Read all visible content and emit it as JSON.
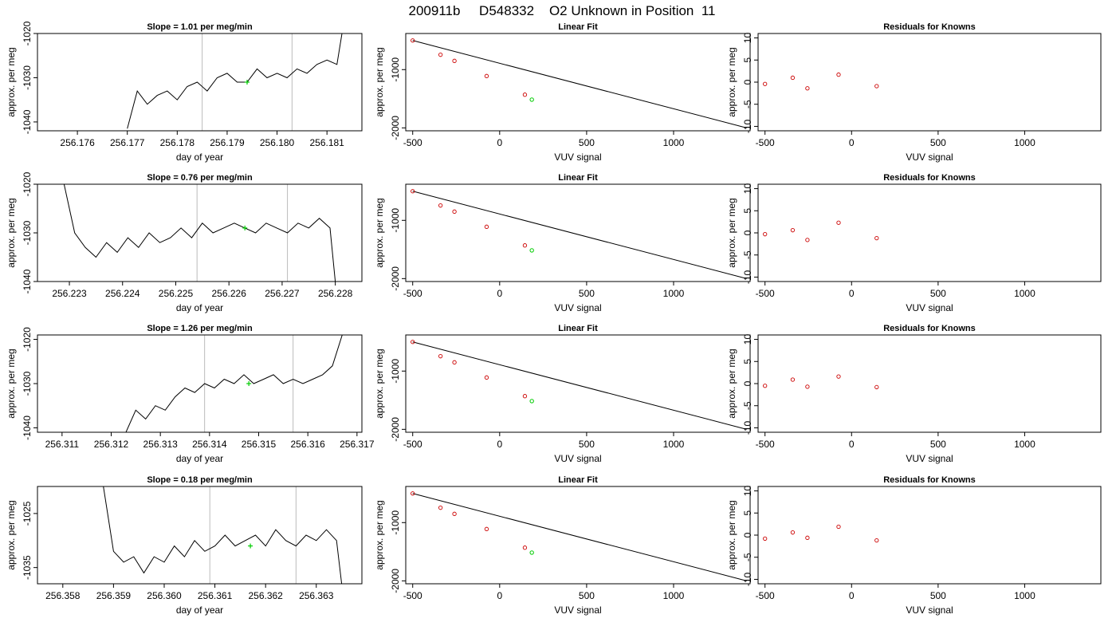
{
  "figure_title": "200911b     D548332    O2 Unknown in Position  11",
  "colors": {
    "trace": "#000000",
    "marker": "#00cc00",
    "known_point": "#cc0000",
    "vline": "#bbbbbb",
    "frame": "#000000"
  },
  "chart_data": [
    {
      "type": "line",
      "title": "Slope =  1.01  per meg/min",
      "xlabel": "day of year",
      "ylabel": "approx. per meg",
      "xlim": [
        256.1752,
        256.1817
      ],
      "ylim": [
        -1042,
        -1020
      ],
      "xticks": [
        256.176,
        256.177,
        256.178,
        256.179,
        256.18,
        256.181
      ],
      "xtick_labels": [
        "256.176",
        "256.177",
        "256.178",
        "256.179",
        "256.180",
        "256.181"
      ],
      "yticks": [
        -1040,
        -1030,
        -1020
      ],
      "ytick_labels": [
        "-1040",
        "-1030",
        "-1020"
      ],
      "vlines": [
        256.1785,
        256.1803
      ],
      "marker": {
        "x": 256.1794,
        "y": -1031
      },
      "series": [
        {
          "x": [
            256.177,
            256.1772,
            256.1774,
            256.1776,
            256.1778,
            256.178,
            256.1782,
            256.1784,
            256.1786,
            256.1788,
            256.179,
            256.1792,
            256.1794,
            256.1796,
            256.1798,
            256.18,
            256.1802,
            256.1804,
            256.1806,
            256.1808,
            256.181,
            256.1812,
            256.1813
          ],
          "y": [
            -1041.5,
            -1033,
            -1036,
            -1034,
            -1033,
            -1035,
            -1032,
            -1031,
            -1033,
            -1030,
            -1029,
            -1031,
            -1031,
            -1028,
            -1030,
            -1029,
            -1030,
            -1028,
            -1029,
            -1027,
            -1026,
            -1027,
            -1020
          ]
        }
      ]
    },
    {
      "type": "line",
      "title": "Linear Fit",
      "xlabel": "VUV signal",
      "ylabel": "approx. per meg",
      "xlim": [
        -540,
        1440
      ],
      "ylim": [
        -2050,
        -380
      ],
      "xticks": [
        -500,
        0,
        500,
        1000
      ],
      "xtick_labels": [
        "-500",
        "0",
        "500",
        "1000"
      ],
      "yticks": [
        -2000,
        -1000
      ],
      "ytick_labels": [
        "-2000",
        "-1000"
      ],
      "fit_line": {
        "x": [
          -500,
          1420
        ],
        "y": [
          -500,
          -2000
        ]
      },
      "known_points": {
        "x": [
          -500,
          -340,
          -260,
          -75,
          145
        ],
        "y": [
          -500,
          -745,
          -850,
          -1110,
          -1430
        ]
      },
      "unknown_point": {
        "x": 185,
        "y": -1515
      }
    },
    {
      "type": "scatter",
      "title": "Residuals for Knowns",
      "xlabel": "VUV signal",
      "ylabel": "approx. per meg",
      "xlim": [
        -540,
        1440
      ],
      "ylim": [
        -11,
        11
      ],
      "xticks": [
        -500,
        0,
        500,
        1000
      ],
      "xtick_labels": [
        "-500",
        "0",
        "500",
        "1000"
      ],
      "yticks": [
        -10,
        -5,
        0,
        5,
        10
      ],
      "ytick_labels": [
        "-10",
        "-5",
        "0",
        "5",
        "10"
      ],
      "points": {
        "x": [
          -500,
          -340,
          -255,
          -75,
          145
        ],
        "y": [
          -0.4,
          1.0,
          -1.4,
          1.7,
          -0.9
        ]
      }
    },
    {
      "type": "line",
      "title": "Slope =  0.76  per meg/min",
      "xlabel": "day of year",
      "ylabel": "approx. per meg",
      "xlim": [
        256.2224,
        256.2285
      ],
      "ylim": [
        -1040,
        -1020
      ],
      "xticks": [
        256.223,
        256.224,
        256.225,
        256.226,
        256.227,
        256.228
      ],
      "xtick_labels": [
        "256.223",
        "256.224",
        "256.225",
        "256.226",
        "256.227",
        "256.228"
      ],
      "yticks": [
        -1040,
        -1030,
        -1020
      ],
      "ytick_labels": [
        "-1040",
        "-1030",
        "-1020"
      ],
      "vlines": [
        256.2254,
        256.2271
      ],
      "marker": {
        "x": 256.2263,
        "y": -1029
      },
      "series": [
        {
          "x": [
            256.2229,
            256.2231,
            256.2233,
            256.2235,
            256.2237,
            256.2239,
            256.2241,
            256.2243,
            256.2245,
            256.2247,
            256.2249,
            256.2251,
            256.2253,
            256.2255,
            256.2257,
            256.2259,
            256.2261,
            256.2263,
            256.2265,
            256.2267,
            256.2269,
            256.2271,
            256.2273,
            256.2275,
            256.2277,
            256.2279,
            256.228
          ],
          "y": [
            -1020,
            -1030,
            -1033,
            -1035,
            -1032,
            -1034,
            -1031,
            -1033,
            -1030,
            -1032,
            -1031,
            -1029,
            -1031,
            -1028,
            -1030,
            -1029,
            -1028,
            -1029,
            -1030,
            -1028,
            -1029,
            -1030,
            -1028,
            -1029,
            -1027,
            -1029,
            -1040
          ]
        }
      ]
    },
    {
      "type": "line",
      "title": "Linear Fit",
      "xlabel": "VUV signal",
      "ylabel": "approx. per meg",
      "xlim": [
        -540,
        1440
      ],
      "ylim": [
        -2050,
        -380
      ],
      "xticks": [
        -500,
        0,
        500,
        1000
      ],
      "xtick_labels": [
        "-500",
        "0",
        "500",
        "1000"
      ],
      "yticks": [
        -2000,
        -1000
      ],
      "ytick_labels": [
        "-2000",
        "-1000"
      ],
      "fit_line": {
        "x": [
          -500,
          1420
        ],
        "y": [
          -500,
          -2000
        ]
      },
      "known_points": {
        "x": [
          -500,
          -340,
          -260,
          -75,
          145
        ],
        "y": [
          -500,
          -745,
          -850,
          -1110,
          -1430
        ]
      },
      "unknown_point": {
        "x": 185,
        "y": -1515
      }
    },
    {
      "type": "scatter",
      "title": "Residuals for Knowns",
      "xlabel": "VUV signal",
      "ylabel": "approx. per meg",
      "xlim": [
        -540,
        1440
      ],
      "ylim": [
        -11,
        11
      ],
      "xticks": [
        -500,
        0,
        500,
        1000
      ],
      "xtick_labels": [
        "-500",
        "0",
        "500",
        "1000"
      ],
      "yticks": [
        -10,
        -5,
        0,
        5,
        10
      ],
      "ytick_labels": [
        "-10",
        "-5",
        "0",
        "5",
        "10"
      ],
      "points": {
        "x": [
          -500,
          -340,
          -255,
          -75,
          145
        ],
        "y": [
          -0.3,
          0.6,
          -1.6,
          2.3,
          -1.2
        ]
      }
    },
    {
      "type": "line",
      "title": "Slope =  1.26  per meg/min",
      "xlabel": "day of year",
      "ylabel": "approx. per meg",
      "xlim": [
        256.3105,
        256.3171
      ],
      "ylim": [
        -1041,
        -1019
      ],
      "xticks": [
        256.311,
        256.312,
        256.313,
        256.314,
        256.315,
        256.316,
        256.317
      ],
      "xtick_labels": [
        "256.311",
        "256.312",
        "256.313",
        "256.314",
        "256.315",
        "256.316",
        "256.317"
      ],
      "yticks": [
        -1040,
        -1030,
        -1020
      ],
      "ytick_labels": [
        "-1040",
        "-1030",
        "-1020"
      ],
      "vlines": [
        256.3139,
        256.3157
      ],
      "marker": {
        "x": 256.3148,
        "y": -1030
      },
      "series": [
        {
          "x": [
            256.3123,
            256.3125,
            256.3127,
            256.3129,
            256.3131,
            256.3133,
            256.3135,
            256.3137,
            256.3139,
            256.3141,
            256.3143,
            256.3145,
            256.3147,
            256.3149,
            256.3151,
            256.3153,
            256.3155,
            256.3157,
            256.3159,
            256.3161,
            256.3163,
            256.3165,
            256.3167
          ],
          "y": [
            -1041,
            -1036,
            -1038,
            -1035,
            -1036,
            -1033,
            -1031,
            -1032,
            -1030,
            -1031,
            -1029,
            -1030,
            -1028,
            -1030,
            -1029,
            -1028,
            -1030,
            -1029,
            -1030,
            -1029,
            -1028,
            -1026,
            -1019
          ]
        }
      ]
    },
    {
      "type": "line",
      "title": "Linear Fit",
      "xlabel": "VUV signal",
      "ylabel": "approx. per meg",
      "xlim": [
        -540,
        1440
      ],
      "ylim": [
        -2050,
        -380
      ],
      "xticks": [
        -500,
        0,
        500,
        1000
      ],
      "xtick_labels": [
        "-500",
        "0",
        "500",
        "1000"
      ],
      "yticks": [
        -2000,
        -1000
      ],
      "ytick_labels": [
        "-2000",
        "-1000"
      ],
      "fit_line": {
        "x": [
          -500,
          1420
        ],
        "y": [
          -500,
          -2000
        ]
      },
      "known_points": {
        "x": [
          -500,
          -340,
          -260,
          -75,
          145
        ],
        "y": [
          -500,
          -745,
          -850,
          -1110,
          -1430
        ]
      },
      "unknown_point": {
        "x": 185,
        "y": -1515
      }
    },
    {
      "type": "scatter",
      "title": "Residuals for Knowns",
      "xlabel": "VUV signal",
      "ylabel": "approx. per meg",
      "xlim": [
        -540,
        1440
      ],
      "ylim": [
        -11,
        11
      ],
      "xticks": [
        -500,
        0,
        500,
        1000
      ],
      "xtick_labels": [
        "-500",
        "0",
        "500",
        "1000"
      ],
      "yticks": [
        -10,
        -5,
        0,
        5,
        10
      ],
      "ytick_labels": [
        "-10",
        "-5",
        "0",
        "5",
        "10"
      ],
      "points": {
        "x": [
          -500,
          -340,
          -255,
          -75,
          145
        ],
        "y": [
          -0.5,
          0.9,
          -0.7,
          1.6,
          -0.8
        ]
      }
    },
    {
      "type": "line",
      "title": "Slope =  0.18  per meg/min",
      "xlabel": "day of year",
      "ylabel": "approx. per meg",
      "xlim": [
        256.3575,
        256.3639
      ],
      "ylim": [
        -1038,
        -1020
      ],
      "xticks": [
        256.358,
        256.359,
        256.36,
        256.361,
        256.362,
        256.363
      ],
      "xtick_labels": [
        "256.358",
        "256.359",
        "256.360",
        "256.361",
        "256.362",
        "256.363"
      ],
      "yticks": [
        -1035,
        -1025
      ],
      "ytick_labels": [
        "-1035",
        "-1025"
      ],
      "vlines": [
        256.3609,
        256.3626
      ],
      "marker": {
        "x": 256.3617,
        "y": -1031
      },
      "series": [
        {
          "x": [
            256.3588,
            256.359,
            256.3592,
            256.3594,
            256.3596,
            256.3598,
            256.36,
            256.3602,
            256.3604,
            256.3606,
            256.3608,
            256.361,
            256.3612,
            256.3614,
            256.3616,
            256.3618,
            256.362,
            256.3622,
            256.3624,
            256.3626,
            256.3628,
            256.363,
            256.3632,
            256.3634,
            256.3635
          ],
          "y": [
            -1020,
            -1032,
            -1034,
            -1033,
            -1036,
            -1033,
            -1034,
            -1031,
            -1033,
            -1030,
            -1032,
            -1031,
            -1029,
            -1031,
            -1030,
            -1029,
            -1031,
            -1028,
            -1030,
            -1031,
            -1029,
            -1030,
            -1028,
            -1030,
            -1038
          ]
        }
      ]
    },
    {
      "type": "line",
      "title": "Linear Fit",
      "xlabel": "VUV signal",
      "ylabel": "approx. per meg",
      "xlim": [
        -540,
        1440
      ],
      "ylim": [
        -2050,
        -380
      ],
      "xticks": [
        -500,
        0,
        500,
        1000
      ],
      "xtick_labels": [
        "-500",
        "0",
        "500",
        "1000"
      ],
      "yticks": [
        -2000,
        -1000
      ],
      "ytick_labels": [
        "-2000",
        "-1000"
      ],
      "fit_line": {
        "x": [
          -500,
          1420
        ],
        "y": [
          -500,
          -2000
        ]
      },
      "known_points": {
        "x": [
          -500,
          -340,
          -260,
          -75,
          145
        ],
        "y": [
          -500,
          -745,
          -850,
          -1110,
          -1430
        ]
      },
      "unknown_point": {
        "x": 185,
        "y": -1515
      }
    },
    {
      "type": "scatter",
      "title": "Residuals for Knowns",
      "xlabel": "VUV signal",
      "ylabel": "approx. per meg",
      "xlim": [
        -540,
        1440
      ],
      "ylim": [
        -11,
        11
      ],
      "xticks": [
        -500,
        0,
        500,
        1000
      ],
      "xtick_labels": [
        "-500",
        "0",
        "500",
        "1000"
      ],
      "yticks": [
        -10,
        -5,
        0,
        5,
        10
      ],
      "points": {
        "x": [
          -500,
          -340,
          -255,
          -75,
          145
        ],
        "y": [
          -0.8,
          0.6,
          -0.6,
          1.9,
          -1.2
        ]
      },
      "ytick_labels": [
        "-10",
        "-5",
        "0",
        "5",
        "10"
      ]
    }
  ]
}
